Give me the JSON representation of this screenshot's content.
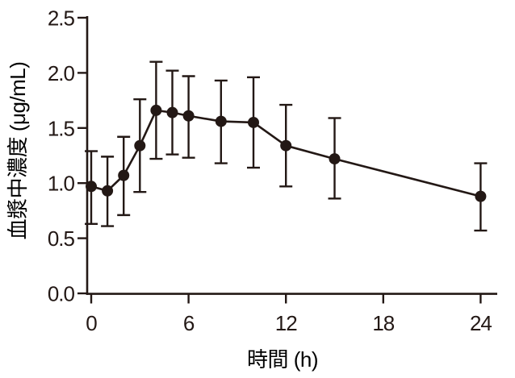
{
  "figure": {
    "background": "#ffffff",
    "ink_color": "#231815"
  },
  "chart_data": {
    "type": "line",
    "title": "",
    "xlabel": "時間 (h)",
    "ylabel": "血漿中濃度 (μg/mL)",
    "x_ticks": [
      0,
      6,
      12,
      18,
      24
    ],
    "y_ticks": [
      "0.0",
      "0.5",
      "1.0",
      "1.5",
      "2.0",
      "2.5"
    ],
    "xlim": [
      -0.3,
      25
    ],
    "ylim": [
      0.0,
      2.5
    ],
    "grid": false,
    "legend_position": "none",
    "marker": "filled-circle",
    "error_bars": "vertical-capped",
    "series": [
      {
        "x": [
          0,
          1,
          2,
          3,
          4,
          5,
          6,
          8,
          10,
          12,
          15,
          24
        ],
        "y": [
          0.97,
          0.93,
          1.07,
          1.34,
          1.66,
          1.64,
          1.61,
          1.56,
          1.55,
          1.34,
          1.22,
          0.88
        ],
        "err_upper": [
          1.29,
          1.24,
          1.42,
          1.76,
          2.1,
          2.02,
          1.97,
          1.93,
          1.96,
          1.71,
          1.59,
          1.18
        ],
        "err_lower": [
          0.63,
          0.61,
          0.71,
          0.92,
          1.22,
          1.26,
          1.23,
          1.18,
          1.14,
          0.97,
          0.86,
          0.57
        ]
      }
    ]
  }
}
